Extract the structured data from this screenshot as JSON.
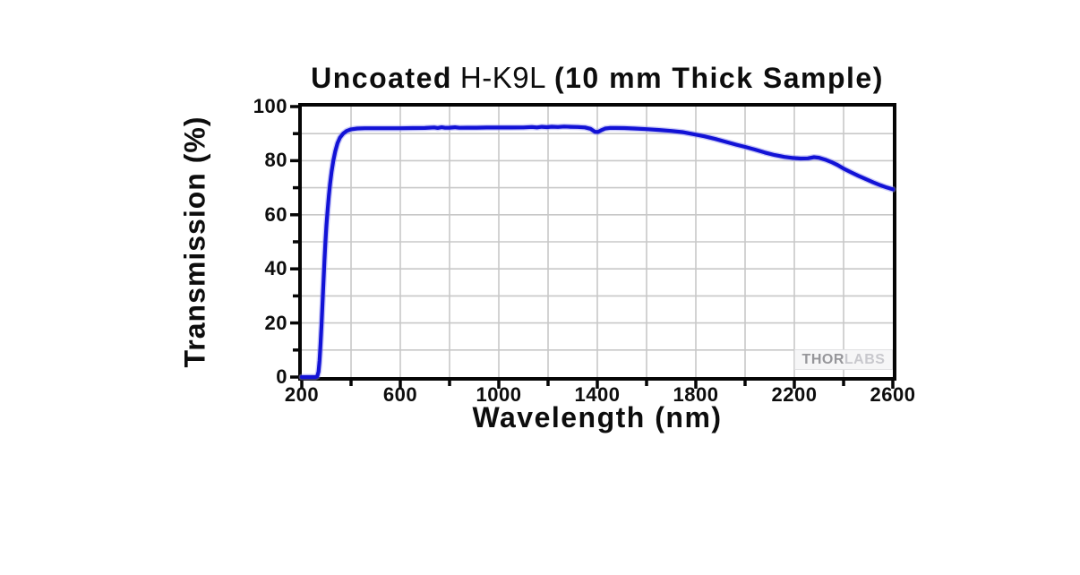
{
  "page": {
    "background": "#ffffff"
  },
  "chart_data": {
    "type": "line",
    "title": {
      "prefix": "Uncoated",
      "material": "H-K9L",
      "suffix": "(10 mm Thick Sample)"
    },
    "xlabel": "Wavelength (nm)",
    "ylabel": "Transmission (%)",
    "xlim": [
      200,
      2600
    ],
    "ylim": [
      0,
      100
    ],
    "x_grid_step": 200,
    "x_tick_step": 200,
    "x_label_step": 400,
    "y_grid_step": 10,
    "y_tick_step": 10,
    "y_label_step": 20,
    "grid": true,
    "legend_position": "none",
    "xtick_labels": [
      "200",
      "600",
      "1000",
      "1400",
      "1800",
      "2200",
      "2600"
    ],
    "ytick_labels": [
      "100",
      "80",
      "60",
      "40",
      "20",
      "0"
    ],
    "colors": {
      "line": "#1212d6",
      "line_halo": "#8d8df0",
      "grid": "#c8c8c8",
      "frame": "#050505",
      "text": "#0d0d0d",
      "watermark_dark": "#96969a",
      "watermark_light": "#c8c8cd"
    },
    "series": [
      {
        "name": "Transmission",
        "points": [
          [
            200,
            0
          ],
          [
            255,
            0
          ],
          [
            263,
            0.3
          ],
          [
            268,
            2
          ],
          [
            272,
            6
          ],
          [
            276,
            12
          ],
          [
            280,
            19
          ],
          [
            284,
            27
          ],
          [
            288,
            35
          ],
          [
            292,
            43
          ],
          [
            296,
            50
          ],
          [
            300,
            56
          ],
          [
            305,
            62
          ],
          [
            310,
            67
          ],
          [
            315,
            71.5
          ],
          [
            321,
            76
          ],
          [
            328,
            80
          ],
          [
            336,
            83.5
          ],
          [
            345,
            86.5
          ],
          [
            355,
            88.5
          ],
          [
            368,
            90
          ],
          [
            382,
            91
          ],
          [
            400,
            91.6
          ],
          [
            425,
            91.9
          ],
          [
            455,
            92
          ],
          [
            500,
            92
          ],
          [
            550,
            92
          ],
          [
            600,
            92
          ],
          [
            650,
            92.05
          ],
          [
            700,
            92.1
          ],
          [
            738,
            92.3
          ],
          [
            752,
            92.1
          ],
          [
            768,
            92.35
          ],
          [
            782,
            92.15
          ],
          [
            800,
            92.2
          ],
          [
            822,
            92.35
          ],
          [
            840,
            92.15
          ],
          [
            870,
            92.2
          ],
          [
            910,
            92.2
          ],
          [
            950,
            92.25
          ],
          [
            1000,
            92.25
          ],
          [
            1050,
            92.25
          ],
          [
            1100,
            92.3
          ],
          [
            1135,
            92.45
          ],
          [
            1155,
            92.3
          ],
          [
            1175,
            92.5
          ],
          [
            1195,
            92.4
          ],
          [
            1215,
            92.55
          ],
          [
            1240,
            92.45
          ],
          [
            1265,
            92.6
          ],
          [
            1290,
            92.5
          ],
          [
            1320,
            92.45
          ],
          [
            1350,
            92.3
          ],
          [
            1372,
            91.8
          ],
          [
            1390,
            90.7
          ],
          [
            1402,
            90.6
          ],
          [
            1415,
            91.2
          ],
          [
            1432,
            91.9
          ],
          [
            1450,
            92.1
          ],
          [
            1475,
            92.1
          ],
          [
            1510,
            92.05
          ],
          [
            1550,
            91.9
          ],
          [
            1600,
            91.65
          ],
          [
            1650,
            91.35
          ],
          [
            1700,
            91
          ],
          [
            1745,
            90.55
          ],
          [
            1790,
            89.8
          ],
          [
            1835,
            89
          ],
          [
            1880,
            88
          ],
          [
            1925,
            86.9
          ],
          [
            1965,
            85.9
          ],
          [
            2000,
            85.1
          ],
          [
            2040,
            84.1
          ],
          [
            2080,
            83
          ],
          [
            2120,
            82.1
          ],
          [
            2160,
            81.4
          ],
          [
            2195,
            81
          ],
          [
            2225,
            80.8
          ],
          [
            2255,
            80.85
          ],
          [
            2280,
            81.3
          ],
          [
            2300,
            81.1
          ],
          [
            2325,
            80.4
          ],
          [
            2350,
            79.5
          ],
          [
            2375,
            78.4
          ],
          [
            2400,
            77.1
          ],
          [
            2430,
            75.7
          ],
          [
            2460,
            74.4
          ],
          [
            2490,
            73.2
          ],
          [
            2520,
            72
          ],
          [
            2550,
            70.9
          ],
          [
            2575,
            70.1
          ],
          [
            2600,
            69.4
          ]
        ]
      }
    ],
    "watermark": {
      "text_bold": "THOR",
      "text_light": "LABS"
    }
  }
}
